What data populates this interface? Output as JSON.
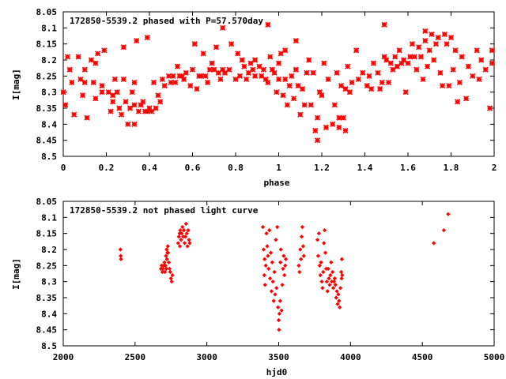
{
  "chart_data": [
    {
      "type": "scatter",
      "title": "172850-5539.2 phased with P=57.570day",
      "xlabel": "phase",
      "ylabel": "I[mag]",
      "xlim": [
        0,
        2
      ],
      "ylim": [
        8.5,
        8.05
      ],
      "y_inverted": true,
      "xticks": [
        "0",
        "0.2",
        "0.4",
        "0.6",
        "0.8",
        "1",
        "1.2",
        "1.4",
        "1.6",
        "1.8",
        "2"
      ],
      "yticks": [
        "8.05",
        "8.1",
        "8.15",
        "8.2",
        "8.25",
        "8.3",
        "8.35",
        "8.4",
        "8.45",
        "8.5"
      ],
      "marker": "star",
      "color": "#ff0000",
      "points": [
        [
          0.0,
          8.3
        ],
        [
          0.01,
          8.34
        ],
        [
          0.02,
          8.19
        ],
        [
          0.03,
          8.23
        ],
        [
          0.04,
          8.27
        ],
        [
          0.05,
          8.37
        ],
        [
          0.07,
          8.19
        ],
        [
          0.08,
          8.26
        ],
        [
          0.09,
          8.31
        ],
        [
          0.1,
          8.27
        ],
        [
          0.1,
          8.23
        ],
        [
          0.11,
          8.38
        ],
        [
          0.13,
          8.2
        ],
        [
          0.14,
          8.27
        ],
        [
          0.15,
          8.32
        ],
        [
          0.15,
          8.21
        ],
        [
          0.16,
          8.18
        ],
        [
          0.18,
          8.28
        ],
        [
          0.18,
          8.3
        ],
        [
          0.19,
          8.17
        ],
        [
          0.21,
          8.3
        ],
        [
          0.22,
          8.36
        ],
        [
          0.23,
          8.31
        ],
        [
          0.23,
          8.33
        ],
        [
          0.24,
          8.26
        ],
        [
          0.25,
          8.3
        ],
        [
          0.26,
          8.35
        ],
        [
          0.27,
          8.37
        ],
        [
          0.28,
          8.26
        ],
        [
          0.28,
          8.16
        ],
        [
          0.29,
          8.33
        ],
        [
          0.3,
          8.4
        ],
        [
          0.31,
          8.35
        ],
        [
          0.32,
          8.3
        ],
        [
          0.33,
          8.4
        ],
        [
          0.33,
          8.27
        ],
        [
          0.33,
          8.34
        ],
        [
          0.34,
          8.14
        ],
        [
          0.35,
          8.36
        ],
        [
          0.36,
          8.34
        ],
        [
          0.37,
          8.33
        ],
        [
          0.38,
          8.36
        ],
        [
          0.39,
          8.13
        ],
        [
          0.39,
          8.36
        ],
        [
          0.4,
          8.35
        ],
        [
          0.41,
          8.36
        ],
        [
          0.42,
          8.27
        ],
        [
          0.43,
          8.35
        ],
        [
          0.44,
          8.31
        ],
        [
          0.45,
          8.33
        ],
        [
          0.46,
          8.26
        ],
        [
          0.47,
          8.28
        ],
        [
          0.49,
          8.25
        ],
        [
          0.5,
          8.27
        ],
        [
          0.51,
          8.25
        ],
        [
          0.52,
          8.27
        ],
        [
          0.53,
          8.22
        ],
        [
          0.54,
          8.25
        ],
        [
          0.55,
          8.25
        ],
        [
          0.56,
          8.26
        ],
        [
          0.57,
          8.24
        ],
        [
          0.59,
          8.28
        ],
        [
          0.6,
          8.23
        ],
        [
          0.61,
          8.15
        ],
        [
          0.62,
          8.29
        ],
        [
          0.63,
          8.25
        ],
        [
          0.64,
          8.25
        ],
        [
          0.65,
          8.18
        ],
        [
          0.66,
          8.25
        ],
        [
          0.67,
          8.27
        ],
        [
          0.68,
          8.23
        ],
        [
          0.69,
          8.21
        ],
        [
          0.7,
          8.23
        ],
        [
          0.71,
          8.16
        ],
        [
          0.72,
          8.24
        ],
        [
          0.73,
          8.26
        ],
        [
          0.74,
          8.1
        ],
        [
          0.74,
          8.23
        ],
        [
          0.75,
          8.24
        ],
        [
          0.77,
          8.23
        ],
        [
          0.78,
          8.15
        ],
        [
          0.8,
          8.26
        ],
        [
          0.81,
          8.18
        ],
        [
          0.82,
          8.25
        ],
        [
          0.83,
          8.2
        ],
        [
          0.84,
          8.22
        ],
        [
          0.85,
          8.26
        ],
        [
          0.86,
          8.24
        ],
        [
          0.87,
          8.21
        ],
        [
          0.88,
          8.23
        ],
        [
          0.89,
          8.25
        ],
        [
          0.89,
          8.2
        ],
        [
          0.91,
          8.22
        ],
        [
          0.92,
          8.25
        ],
        [
          0.93,
          8.23
        ],
        [
          0.94,
          8.26
        ],
        [
          0.95,
          8.27
        ],
        [
          0.95,
          8.09
        ],
        [
          0.96,
          8.19
        ],
        [
          0.97,
          8.23
        ],
        [
          0.98,
          8.24
        ],
        [
          0.99,
          8.3
        ],
        [
          1.0,
          8.21
        ],
        [
          1.0,
          8.26
        ],
        [
          1.01,
          8.18
        ],
        [
          1.02,
          8.31
        ],
        [
          1.03,
          8.17
        ],
        [
          1.03,
          8.26
        ],
        [
          1.04,
          8.34
        ],
        [
          1.05,
          8.28
        ],
        [
          1.06,
          8.25
        ],
        [
          1.07,
          8.32
        ],
        [
          1.08,
          8.14
        ],
        [
          1.08,
          8.23
        ],
        [
          1.09,
          8.28
        ],
        [
          1.1,
          8.37
        ],
        [
          1.11,
          8.29
        ],
        [
          1.12,
          8.34
        ],
        [
          1.13,
          8.24
        ],
        [
          1.14,
          8.2
        ],
        [
          1.15,
          8.34
        ],
        [
          1.16,
          8.24
        ],
        [
          1.17,
          8.42
        ],
        [
          1.18,
          8.38
        ],
        [
          1.18,
          8.45
        ],
        [
          1.19,
          8.3
        ],
        [
          1.2,
          8.31
        ],
        [
          1.21,
          8.21
        ],
        [
          1.22,
          8.41
        ],
        [
          1.23,
          8.26
        ],
        [
          1.25,
          8.4
        ],
        [
          1.26,
          8.34
        ],
        [
          1.27,
          8.24
        ],
        [
          1.28,
          8.41
        ],
        [
          1.28,
          8.38
        ],
        [
          1.29,
          8.28
        ],
        [
          1.3,
          8.38
        ],
        [
          1.31,
          8.42
        ],
        [
          1.31,
          8.29
        ],
        [
          1.32,
          8.22
        ],
        [
          1.33,
          8.3
        ],
        [
          1.34,
          8.27
        ],
        [
          1.36,
          8.17
        ],
        [
          1.37,
          8.26
        ],
        [
          1.39,
          8.24
        ],
        [
          1.41,
          8.28
        ],
        [
          1.42,
          8.25
        ],
        [
          1.43,
          8.29
        ],
        [
          1.44,
          8.21
        ],
        [
          1.46,
          8.24
        ],
        [
          1.47,
          8.29
        ],
        [
          1.48,
          8.27
        ],
        [
          1.49,
          8.19
        ],
        [
          1.49,
          8.09
        ],
        [
          1.5,
          8.2
        ],
        [
          1.51,
          8.27
        ],
        [
          1.52,
          8.21
        ],
        [
          1.53,
          8.23
        ],
        [
          1.54,
          8.19
        ],
        [
          1.55,
          8.22
        ],
        [
          1.56,
          8.17
        ],
        [
          1.57,
          8.21
        ],
        [
          1.58,
          8.2
        ],
        [
          1.59,
          8.3
        ],
        [
          1.6,
          8.21
        ],
        [
          1.61,
          8.19
        ],
        [
          1.62,
          8.15
        ],
        [
          1.63,
          8.19
        ],
        [
          1.64,
          8.23
        ],
        [
          1.65,
          8.16
        ],
        [
          1.66,
          8.19
        ],
        [
          1.67,
          8.26
        ],
        [
          1.68,
          8.14
        ],
        [
          1.68,
          8.11
        ],
        [
          1.69,
          8.22
        ],
        [
          1.7,
          8.17
        ],
        [
          1.71,
          8.12
        ],
        [
          1.72,
          8.2
        ],
        [
          1.73,
          8.15
        ],
        [
          1.74,
          8.13
        ],
        [
          1.75,
          8.24
        ],
        [
          1.76,
          8.28
        ],
        [
          1.77,
          8.12
        ],
        [
          1.78,
          8.15
        ],
        [
          1.79,
          8.28
        ],
        [
          1.8,
          8.13
        ],
        [
          1.81,
          8.23
        ],
        [
          1.82,
          8.17
        ],
        [
          1.83,
          8.33
        ],
        [
          1.84,
          8.27
        ],
        [
          1.85,
          8.19
        ],
        [
          1.87,
          8.32
        ],
        [
          1.88,
          8.22
        ],
        [
          1.9,
          8.25
        ],
        [
          1.92,
          8.17
        ],
        [
          1.93,
          8.26
        ],
        [
          1.94,
          8.2
        ],
        [
          1.96,
          8.23
        ],
        [
          1.98,
          8.35
        ],
        [
          1.99,
          8.21
        ],
        [
          1.99,
          8.17
        ]
      ]
    },
    {
      "type": "scatter",
      "title": "172850-5539.2 not phased light curve",
      "xlabel": "hjd0",
      "ylabel": "I[mag]",
      "xlim": [
        2000,
        5000
      ],
      "ylim": [
        8.5,
        8.05
      ],
      "y_inverted": true,
      "xticks": [
        "2000",
        "2500",
        "3000",
        "3500",
        "4000",
        "4500",
        "5000"
      ],
      "yticks": [
        "8.05",
        "8.1",
        "8.15",
        "8.2",
        "8.25",
        "8.3",
        "8.35",
        "8.4",
        "8.45",
        "8.5"
      ],
      "marker": "diamond",
      "color": "#ff0000",
      "points": [
        [
          2398,
          8.2
        ],
        [
          2400,
          8.22
        ],
        [
          2402,
          8.23
        ],
        [
          2680,
          8.26
        ],
        [
          2685,
          8.25
        ],
        [
          2690,
          8.27
        ],
        [
          2695,
          8.26
        ],
        [
          2700,
          8.25
        ],
        [
          2705,
          8.24
        ],
        [
          2708,
          8.27
        ],
        [
          2712,
          8.25
        ],
        [
          2715,
          8.22
        ],
        [
          2718,
          8.26
        ],
        [
          2720,
          8.2
        ],
        [
          2722,
          8.23
        ],
        [
          2725,
          8.21
        ],
        [
          2728,
          8.19
        ],
        [
          2730,
          8.21
        ],
        [
          2735,
          8.24
        ],
        [
          2740,
          8.26
        ],
        [
          2745,
          8.27
        ],
        [
          2750,
          8.29
        ],
        [
          2755,
          8.3
        ],
        [
          2760,
          8.28
        ],
        [
          2800,
          8.18
        ],
        [
          2805,
          8.16
        ],
        [
          2810,
          8.15
        ],
        [
          2812,
          8.19
        ],
        [
          2815,
          8.14
        ],
        [
          2820,
          8.17
        ],
        [
          2825,
          8.15
        ],
        [
          2830,
          8.13
        ],
        [
          2835,
          8.16
        ],
        [
          2840,
          8.14
        ],
        [
          2845,
          8.18
        ],
        [
          2850,
          8.16
        ],
        [
          2855,
          8.12
        ],
        [
          2860,
          8.15
        ],
        [
          2865,
          8.19
        ],
        [
          2870,
          8.14
        ],
        [
          2875,
          8.17
        ],
        [
          2880,
          8.18
        ],
        [
          3390,
          8.13
        ],
        [
          3395,
          8.2
        ],
        [
          3400,
          8.28
        ],
        [
          3402,
          8.23
        ],
        [
          3405,
          8.31
        ],
        [
          3410,
          8.25
        ],
        [
          3415,
          8.15
        ],
        [
          3420,
          8.19
        ],
        [
          3425,
          8.22
        ],
        [
          3430,
          8.26
        ],
        [
          3435,
          8.14
        ],
        [
          3440,
          8.29
        ],
        [
          3445,
          8.21
        ],
        [
          3450,
          8.33
        ],
        [
          3455,
          8.24
        ],
        [
          3460,
          8.3
        ],
        [
          3465,
          8.36
        ],
        [
          3470,
          8.27
        ],
        [
          3475,
          8.34
        ],
        [
          3480,
          8.17
        ],
        [
          3485,
          8.32
        ],
        [
          3490,
          8.13
        ],
        [
          3495,
          8.38
        ],
        [
          3500,
          8.42
        ],
        [
          3502,
          8.45
        ],
        [
          3505,
          8.4
        ],
        [
          3510,
          8.36
        ],
        [
          3512,
          8.24
        ],
        [
          3515,
          8.2
        ],
        [
          3520,
          8.39
        ],
        [
          3525,
          8.31
        ],
        [
          3530,
          8.26
        ],
        [
          3535,
          8.22
        ],
        [
          3540,
          8.28
        ],
        [
          3545,
          8.25
        ],
        [
          3550,
          8.23
        ],
        [
          3640,
          8.25
        ],
        [
          3645,
          8.27
        ],
        [
          3650,
          8.2
        ],
        [
          3655,
          8.23
        ],
        [
          3660,
          8.16
        ],
        [
          3665,
          8.13
        ],
        [
          3670,
          8.19
        ],
        [
          3675,
          8.22
        ],
        [
          3770,
          8.17
        ],
        [
          3775,
          8.22
        ],
        [
          3780,
          8.15
        ],
        [
          3785,
          8.25
        ],
        [
          3790,
          8.28
        ],
        [
          3795,
          8.24
        ],
        [
          3800,
          8.3
        ],
        [
          3805,
          8.32
        ],
        [
          3810,
          8.27
        ],
        [
          3815,
          8.18
        ],
        [
          3820,
          8.14
        ],
        [
          3825,
          8.21
        ],
        [
          3830,
          8.26
        ],
        [
          3835,
          8.3
        ],
        [
          3840,
          8.33
        ],
        [
          3845,
          8.26
        ],
        [
          3850,
          8.29
        ],
        [
          3855,
          8.31
        ],
        [
          3860,
          8.28
        ],
        [
          3865,
          8.24
        ],
        [
          3870,
          8.3
        ],
        [
          3875,
          8.27
        ],
        [
          3880,
          8.32
        ],
        [
          3885,
          8.3
        ],
        [
          3890,
          8.29
        ],
        [
          3895,
          8.31
        ],
        [
          3900,
          8.35
        ],
        [
          3905,
          8.33
        ],
        [
          3910,
          8.37
        ],
        [
          3915,
          8.34
        ],
        [
          3920,
          8.36
        ],
        [
          3925,
          8.38
        ],
        [
          3930,
          8.32
        ],
        [
          3935,
          8.27
        ],
        [
          3938,
          8.29
        ],
        [
          3940,
          8.23
        ],
        [
          3942,
          8.28
        ],
        [
          4580,
          8.18
        ],
        [
          4650,
          8.14
        ],
        [
          4680,
          8.09
        ]
      ]
    }
  ]
}
